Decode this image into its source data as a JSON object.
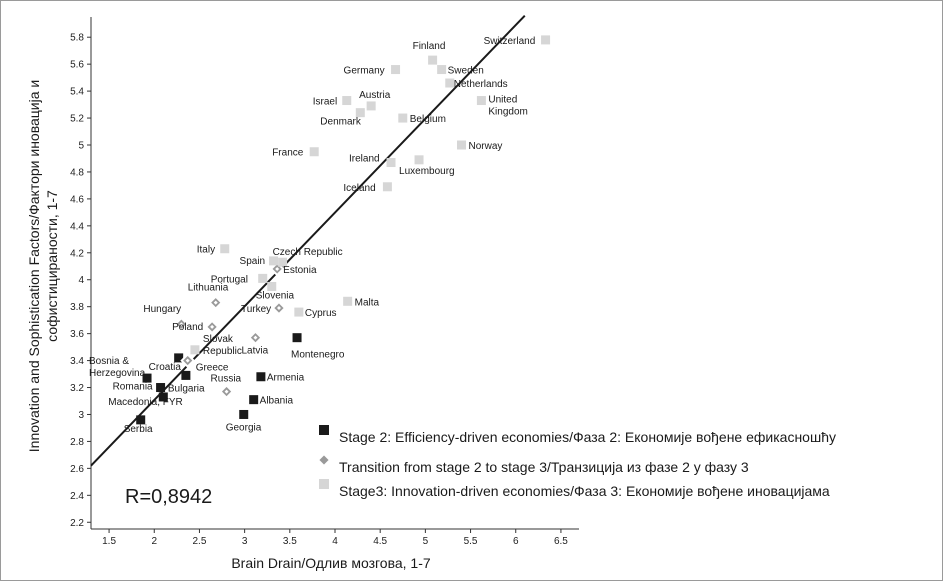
{
  "chart_data": {
    "type": "scatter",
    "title": "",
    "xlabel": "Brain Drain/Одлив мозгова, 1-7",
    "ylabel_lines": [
      "Innovation and Sophistication Factors/Фактори иновација и",
      "софистицираности, 1-7"
    ],
    "xlim": [
      1.3,
      6.7
    ],
    "ylim": [
      2.15,
      5.95
    ],
    "x_ticks": [
      "1.5",
      "2",
      "2.5",
      "3",
      "3.5",
      "4",
      "4.5",
      "5",
      "5.5",
      "6",
      "6.5"
    ],
    "y_ticks": [
      "2.2",
      "2.4",
      "2.6",
      "2.8",
      "3",
      "3.2",
      "3.4",
      "3.6",
      "3.8",
      "4",
      "4.2",
      "4.4",
      "4.6",
      "4.8",
      "5",
      "5.2",
      "5.4",
      "5.6",
      "5.8"
    ],
    "annotation": "R=0,8942",
    "regression_line": {
      "x": [
        1.3,
        6.1
      ],
      "y": [
        2.62,
        5.96
      ]
    },
    "colors": {
      "stage2": "#1a1a1a",
      "transition": "#9a9a9a",
      "stage3": "#d6d6d6",
      "line": "#1a1a1a"
    },
    "legend_position": "bottom-right",
    "series": [
      {
        "name": "Stage 2: Efficiency-driven economies/Фаза 2: Економије вођене ефикасношћу",
        "marker": "square",
        "points": [
          {
            "label": "Serbia",
            "x": 1.85,
            "y": 2.96
          },
          {
            "label": "Macedonia, FYR",
            "x": 2.1,
            "y": 3.13
          },
          {
            "label": "Romania",
            "x": 2.07,
            "y": 3.2
          },
          {
            "label": "Bosnia & Herzegovina",
            "x": 1.92,
            "y": 3.27
          },
          {
            "label": "Croatia",
            "x": 2.27,
            "y": 3.42
          },
          {
            "label": "Bulgaria",
            "x": 2.35,
            "y": 3.29
          },
          {
            "label": "Georgia",
            "x": 2.99,
            "y": 3.0
          },
          {
            "label": "Albania",
            "x": 3.1,
            "y": 3.11
          },
          {
            "label": "Armenia",
            "x": 3.18,
            "y": 3.28
          },
          {
            "label": "Montenegro",
            "x": 3.58,
            "y": 3.57
          }
        ]
      },
      {
        "name": "Transition from stage 2 to stage 3/Транзиција из фазе 2 у фазу 3",
        "marker": "diamond",
        "points": [
          {
            "label": "Hungary",
            "x": 2.3,
            "y": 3.67
          },
          {
            "label": "Lithuania",
            "x": 2.68,
            "y": 3.83
          },
          {
            "label": "Poland",
            "x": 2.64,
            "y": 3.65
          },
          {
            "label": "Latvia",
            "x": 3.12,
            "y": 3.57
          },
          {
            "label": "Turkey",
            "x": 3.38,
            "y": 3.79
          },
          {
            "label": "Russia",
            "x": 2.8,
            "y": 3.17
          },
          {
            "label": "Estonia",
            "x": 3.36,
            "y": 4.08
          },
          {
            "label": "Greece",
            "x": 2.37,
            "y": 3.4
          }
        ]
      },
      {
        "name": "Stage3: Innovation-driven economies/Фаза 3: Економије вођене иновацијама",
        "marker": "square",
        "points": [
          {
            "label": "Slovak Republic",
            "x": 2.45,
            "y": 3.48
          },
          {
            "label": "Italy",
            "x": 2.78,
            "y": 4.23
          },
          {
            "label": "Spain",
            "x": 3.32,
            "y": 4.14
          },
          {
            "label": "Czech Republic",
            "x": 3.42,
            "y": 4.13
          },
          {
            "label": "Portugal",
            "x": 3.2,
            "y": 4.01
          },
          {
            "label": "Slovenia",
            "x": 3.3,
            "y": 3.95
          },
          {
            "label": "Cyprus",
            "x": 3.6,
            "y": 3.76
          },
          {
            "label": "Malta",
            "x": 4.14,
            "y": 3.84
          },
          {
            "label": "France",
            "x": 3.77,
            "y": 4.95
          },
          {
            "label": "Iceland",
            "x": 4.58,
            "y": 4.69
          },
          {
            "label": "Ireland",
            "x": 4.62,
            "y": 4.87
          },
          {
            "label": "Luxembourg",
            "x": 4.93,
            "y": 4.89
          },
          {
            "label": "Israel",
            "x": 4.13,
            "y": 5.33
          },
          {
            "label": "Austria",
            "x": 4.4,
            "y": 5.29
          },
          {
            "label": "Denmark",
            "x": 4.28,
            "y": 5.24
          },
          {
            "label": "Belgium",
            "x": 4.75,
            "y": 5.2
          },
          {
            "label": "Germany",
            "x": 4.67,
            "y": 5.56
          },
          {
            "label": "Finland",
            "x": 5.08,
            "y": 5.63
          },
          {
            "label": "Sweden",
            "x": 5.18,
            "y": 5.56
          },
          {
            "label": "Netherlands",
            "x": 5.27,
            "y": 5.46
          },
          {
            "label": "United Kingdom",
            "x": 5.62,
            "y": 5.33
          },
          {
            "label": "Norway",
            "x": 5.4,
            "y": 5.0
          },
          {
            "label": "Switzerland",
            "x": 6.33,
            "y": 5.78
          }
        ]
      }
    ]
  }
}
